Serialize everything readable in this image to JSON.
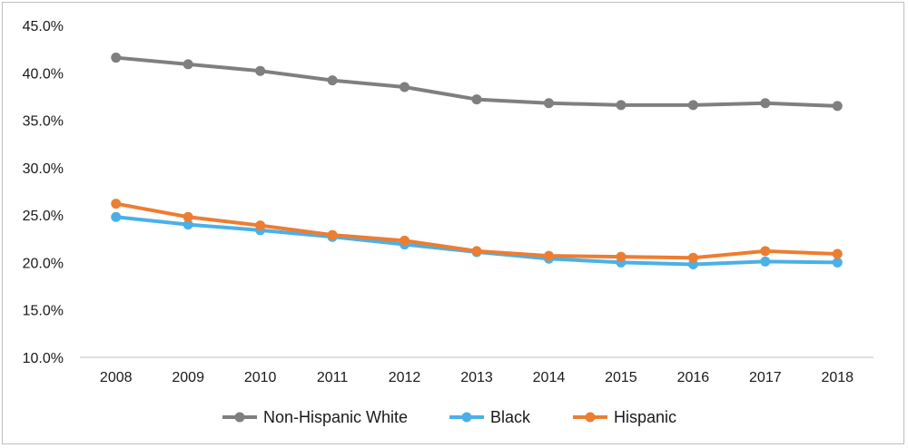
{
  "chart_data": {
    "type": "line",
    "title": "",
    "xlabel": "",
    "ylabel": "",
    "x": [
      "2008",
      "2009",
      "2010",
      "2011",
      "2012",
      "2013",
      "2014",
      "2015",
      "2016",
      "2017",
      "2018"
    ],
    "ylim": [
      10.0,
      45.0
    ],
    "yticks": [
      "10.0%",
      "15.0%",
      "20.0%",
      "25.0%",
      "30.0%",
      "35.0%",
      "40.0%",
      "45.0%"
    ],
    "ytick_values": [
      10,
      15,
      20,
      25,
      30,
      35,
      40,
      45
    ],
    "grid": false,
    "legend_position": "bottom",
    "series": [
      {
        "name": "Non-Hispanic White",
        "color": "#7f7f7f",
        "values": [
          41.6,
          40.9,
          40.2,
          39.2,
          38.5,
          37.2,
          36.8,
          36.6,
          36.6,
          36.8,
          36.5
        ]
      },
      {
        "name": "Black",
        "color": "#4ab0e8",
        "values": [
          24.8,
          24.0,
          23.4,
          22.7,
          21.9,
          21.1,
          20.4,
          20.0,
          19.8,
          20.1,
          20.0
        ]
      },
      {
        "name": "Hispanic",
        "color": "#ed7d31",
        "values": [
          26.2,
          24.8,
          23.9,
          22.9,
          22.3,
          21.2,
          20.7,
          20.6,
          20.5,
          21.2,
          20.9
        ]
      }
    ]
  }
}
